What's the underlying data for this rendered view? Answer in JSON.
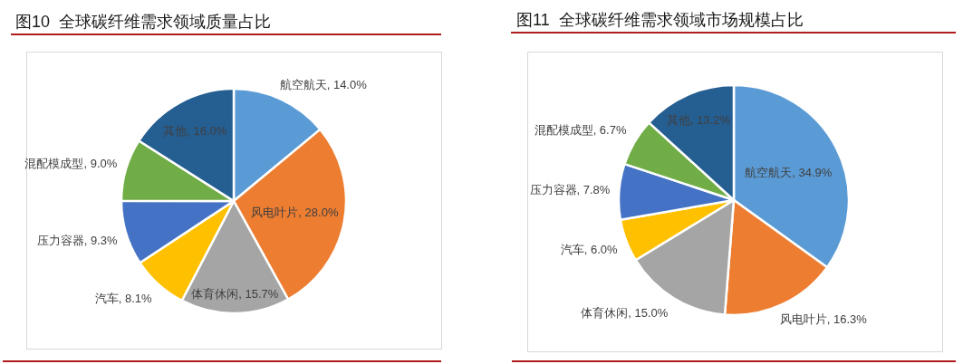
{
  "chart_data": [
    {
      "type": "pie",
      "title": "图10  全球碳纤维需求领域质量占比",
      "categories": [
        "航空航天",
        "风电叶片",
        "体育休闲",
        "汽车",
        "压力容器",
        "混配模成型",
        "其他"
      ],
      "values": [
        14.0,
        28.0,
        15.7,
        8.1,
        9.3,
        9.0,
        16.0
      ],
      "colors": [
        "#5b9bd5",
        "#ed7d31",
        "#a5a5a5",
        "#ffc000",
        "#4472c4",
        "#70ad47",
        "#255e91"
      ],
      "value_labels": [
        "14.0%",
        "28.0%",
        "15.7%",
        "8.1%",
        "9.3%",
        "9.0%",
        "16.0%"
      ]
    },
    {
      "type": "pie",
      "title": "图11  全球碳纤维需求领域市场规模占比",
      "categories": [
        "航空航天",
        "风电叶片",
        "体育休闲",
        "汽车",
        "压力容器",
        "混配模成型",
        "其他"
      ],
      "values": [
        34.9,
        16.3,
        15.0,
        6.0,
        7.8,
        6.7,
        13.2
      ],
      "colors": [
        "#5b9bd5",
        "#ed7d31",
        "#a5a5a5",
        "#ffc000",
        "#4472c4",
        "#70ad47",
        "#255e91"
      ],
      "value_labels": [
        "34.9%",
        "16.3%",
        "15.0%",
        "6.0%",
        "7.8%",
        "6.7%",
        "13.2%"
      ]
    }
  ]
}
